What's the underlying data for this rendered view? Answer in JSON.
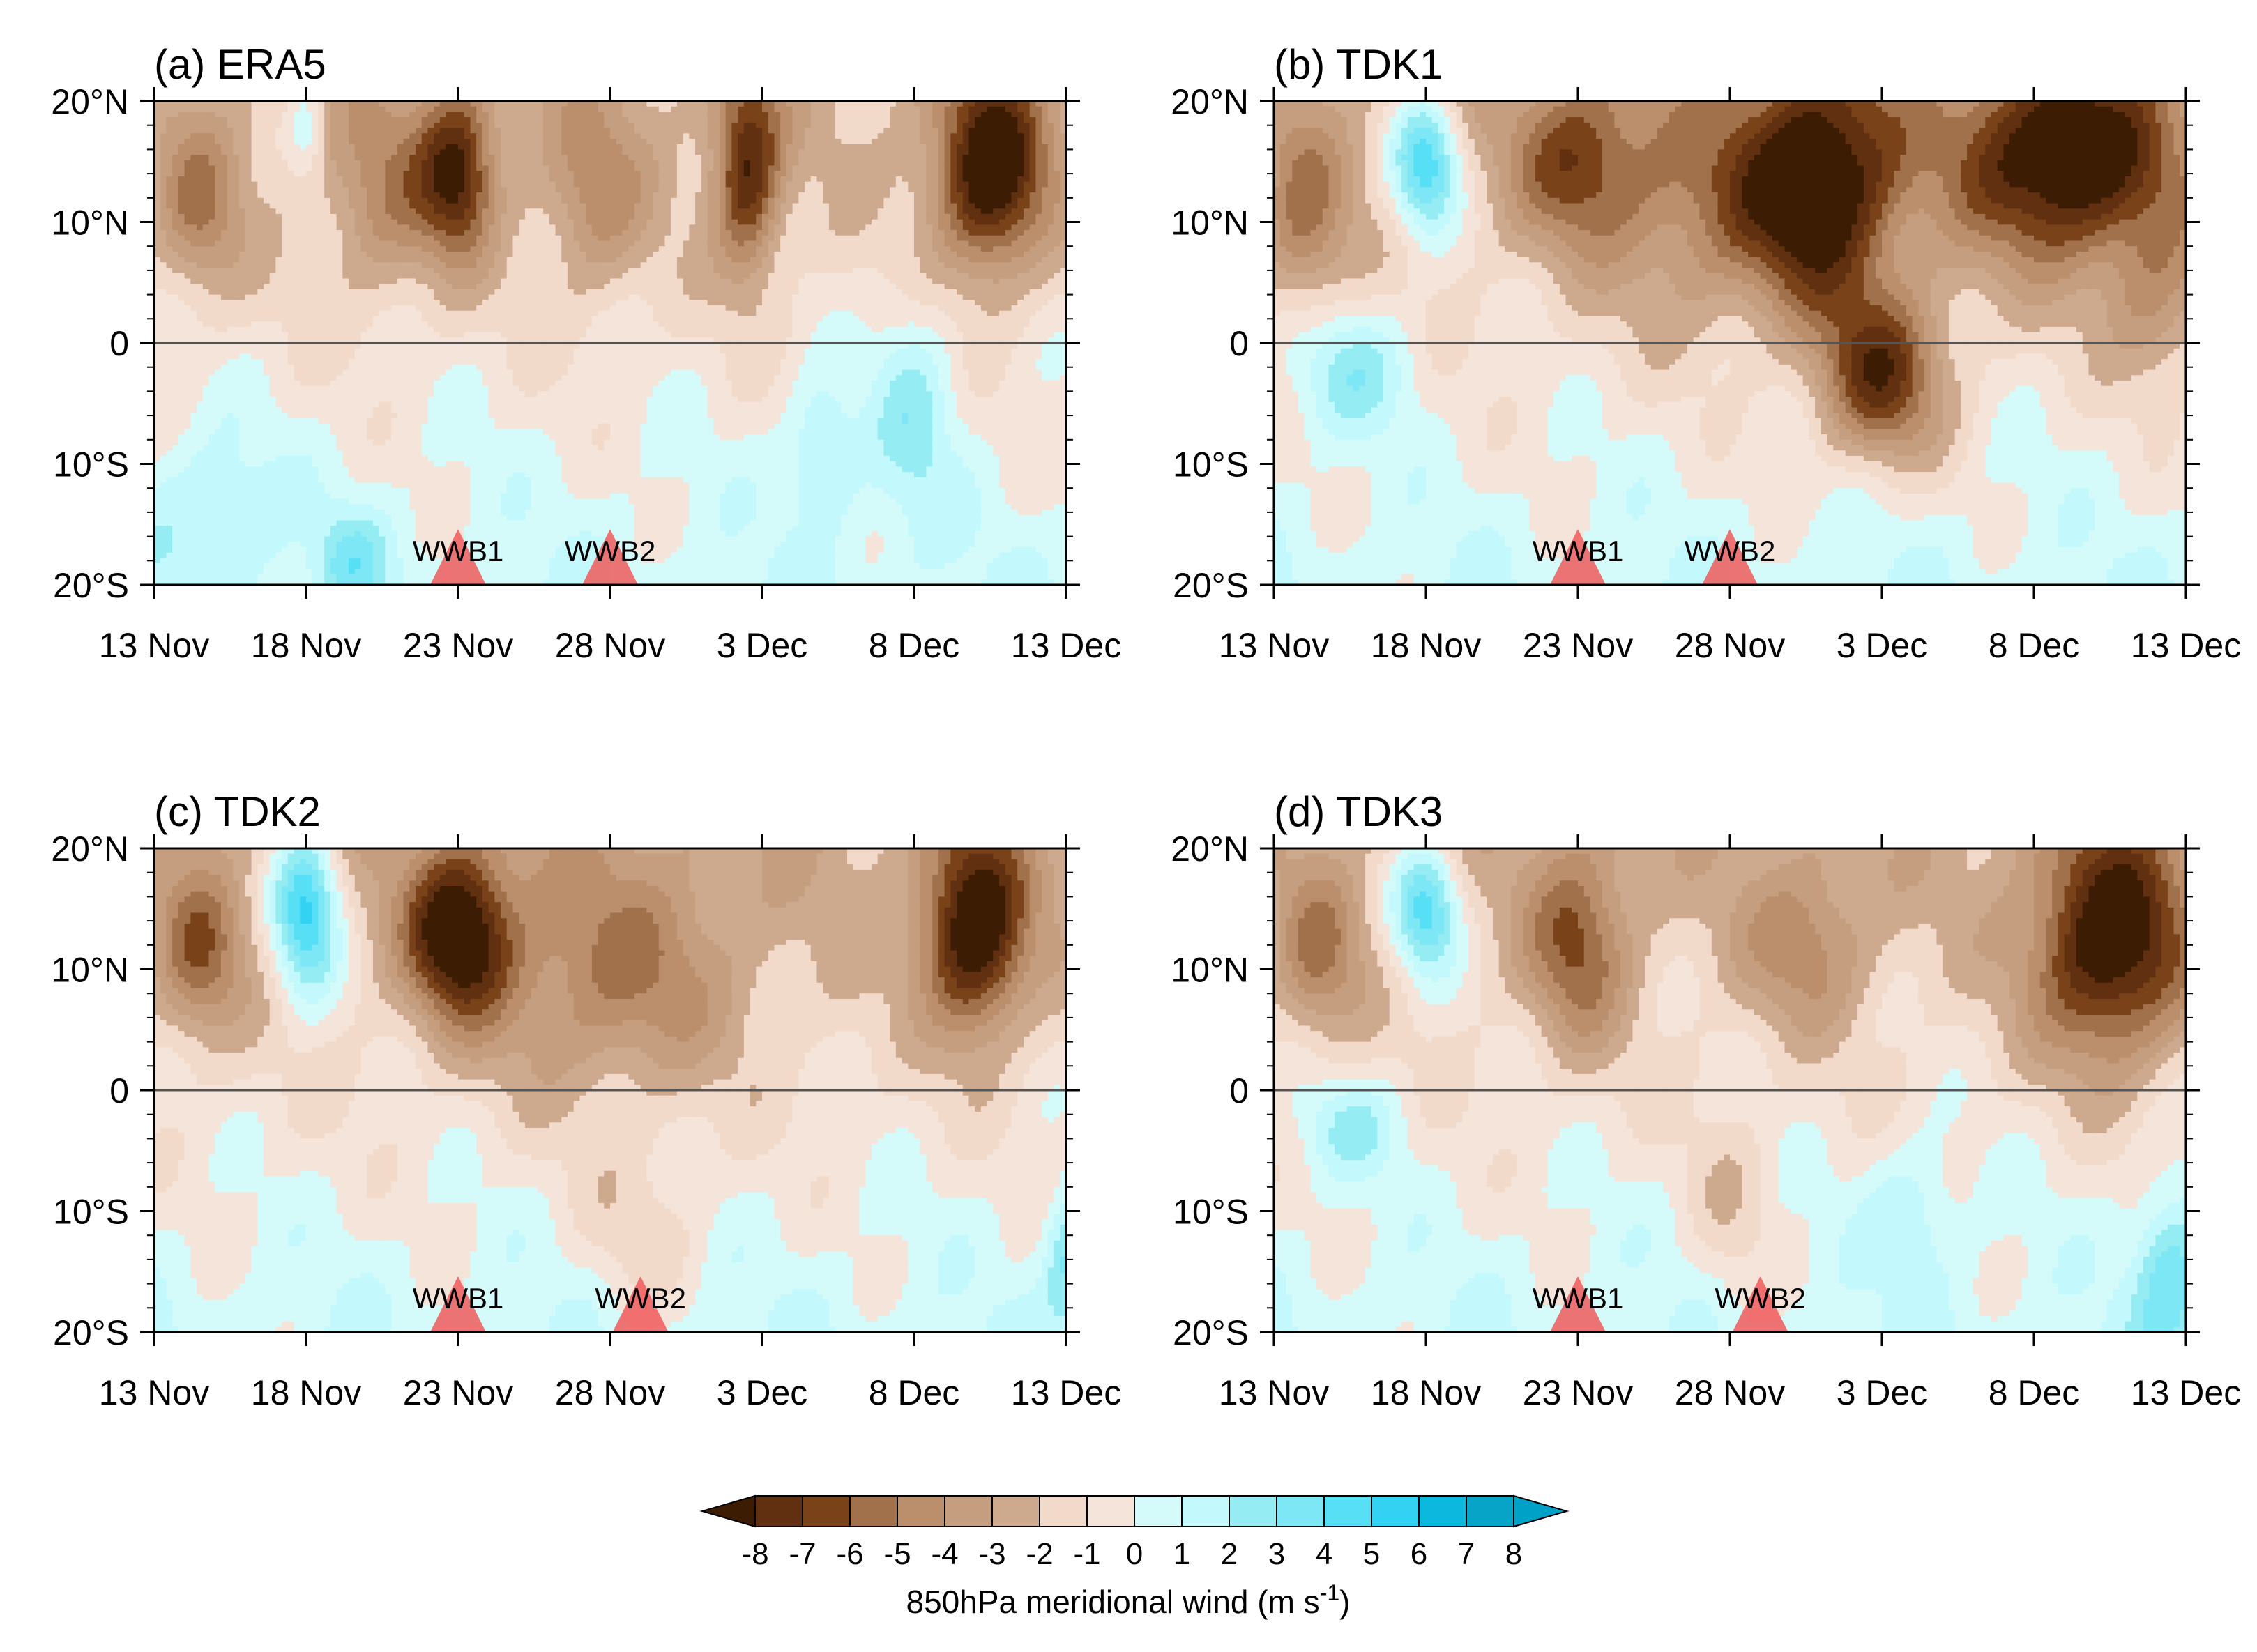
{
  "chart_data": [
    {
      "type": "heatmap",
      "panel_title": "(a) ERA5",
      "x_tick_labels": [
        "13 Nov",
        "18 Nov",
        "23 Nov",
        "28 Nov",
        "3 Dec",
        "8 Dec",
        "13 Dec"
      ],
      "y_tick_labels": [
        "20°N",
        "10°N",
        "0",
        "10°S",
        "20°S"
      ],
      "xlim_days": [
        0,
        30
      ],
      "ylim_lat": [
        -20,
        20
      ],
      "events": [
        {
          "label": "WWB1",
          "day": 10
        },
        {
          "label": "WWB2",
          "day": 15
        }
      ],
      "blobs": [
        {
          "d": 1.5,
          "lat": 11,
          "sd": 1.0,
          "sl": 5,
          "a": -3.5
        },
        {
          "d": 10,
          "lat": 14,
          "sd": 0.9,
          "sl": 5,
          "a": -6.5
        },
        {
          "d": 7.5,
          "lat": 12,
          "sd": 1.3,
          "sl": 6,
          "a": -3.0
        },
        {
          "d": 14.5,
          "lat": 12,
          "sd": 1.2,
          "sl": 6,
          "a": -3.0
        },
        {
          "d": 19.5,
          "lat": 14,
          "sd": 0.8,
          "sl": 6,
          "a": -6.5
        },
        {
          "d": 27.5,
          "lat": 14,
          "sd": 1.3,
          "sl": 6,
          "a": -8.0
        },
        {
          "d": 5,
          "lat": 18,
          "sd": 0.4,
          "sl": 3,
          "a": 2.5
        },
        {
          "d": 2,
          "lat": -14,
          "sd": 1.5,
          "sl": 5,
          "a": 2.0
        },
        {
          "d": 22,
          "lat": -9,
          "sd": 0.8,
          "sl": 4,
          "a": 2.8
        },
        {
          "d": 25,
          "lat": -5,
          "sd": 1.0,
          "sl": 7,
          "a": 2.5
        },
        {
          "d": 6.5,
          "lat": -18,
          "sd": 0.8,
          "sl": 3,
          "a": 2.5
        }
      ],
      "north_bias": -2.2,
      "south_bias": 0.8
    },
    {
      "type": "heatmap",
      "panel_title": "(b) TDK1",
      "x_tick_labels": [
        "13 Nov",
        "18 Nov",
        "23 Nov",
        "28 Nov",
        "3 Dec",
        "8 Dec",
        "13 Dec"
      ],
      "y_tick_labels": [
        "20°N",
        "10°N",
        "0",
        "10°S",
        "20°S"
      ],
      "xlim_days": [
        0,
        30
      ],
      "ylim_lat": [
        -20,
        20
      ],
      "events": [
        {
          "label": "WWB1",
          "day": 10
        },
        {
          "label": "WWB2",
          "day": 15
        }
      ],
      "blobs": [
        {
          "d": 1,
          "lat": 10,
          "sd": 1.0,
          "sl": 6,
          "a": -3.5
        },
        {
          "d": 5,
          "lat": 15,
          "sd": 0.8,
          "sl": 4,
          "a": 6.5
        },
        {
          "d": 2.5,
          "lat": -2,
          "sd": 1.5,
          "sl": 4,
          "a": 3.0
        },
        {
          "d": 10,
          "lat": 15,
          "sd": 1.5,
          "sl": 5,
          "a": -4.5
        },
        {
          "d": 18,
          "lat": 13,
          "sd": 1.8,
          "sl": 7,
          "a": -8.0
        },
        {
          "d": 26,
          "lat": 15,
          "sd": 2.5,
          "sl": 6,
          "a": -8.0
        },
        {
          "d": 20,
          "lat": -3,
          "sd": 1.5,
          "sl": 5,
          "a": -6.5
        },
        {
          "d": 14,
          "lat": 11,
          "sd": 2.2,
          "sl": 7,
          "a": -3.0
        },
        {
          "d": 29,
          "lat": 3,
          "sd": 1.2,
          "sl": 5,
          "a": -3.0
        }
      ],
      "north_bias": -2.5,
      "south_bias": 0.8
    },
    {
      "type": "heatmap",
      "panel_title": "(c) TDK2",
      "x_tick_labels": [
        "13 Nov",
        "18 Nov",
        "23 Nov",
        "28 Nov",
        "3 Dec",
        "8 Dec",
        "13 Dec"
      ],
      "y_tick_labels": [
        "20°N",
        "10°N",
        "0",
        "10°S",
        "20°S"
      ],
      "xlim_days": [
        0,
        30
      ],
      "ylim_lat": [
        -20,
        20
      ],
      "events": [
        {
          "label": "WWB1",
          "day": 10
        },
        {
          "label": "WWB2",
          "day": 16
        }
      ],
      "blobs": [
        {
          "d": 1.5,
          "lat": 11,
          "sd": 1.0,
          "sl": 5,
          "a": -4.0
        },
        {
          "d": 5,
          "lat": 15,
          "sd": 0.8,
          "sl": 5,
          "a": 7.0
        },
        {
          "d": 10,
          "lat": 13,
          "sd": 1.2,
          "sl": 5,
          "a": -7.5
        },
        {
          "d": 15,
          "lat": 9,
          "sd": 3.0,
          "sl": 7,
          "a": -3.5
        },
        {
          "d": 27,
          "lat": 13,
          "sd": 1.2,
          "sl": 6,
          "a": -8.0
        },
        {
          "d": 16,
          "lat": -12,
          "sd": 1.5,
          "sl": 5,
          "a": -1.5
        },
        {
          "d": 30,
          "lat": -14,
          "sd": 0.5,
          "sl": 4,
          "a": 3.0
        }
      ],
      "north_bias": -2.5,
      "south_bias": 0.8
    },
    {
      "type": "heatmap",
      "panel_title": "(d) TDK3",
      "x_tick_labels": [
        "13 Nov",
        "18 Nov",
        "23 Nov",
        "28 Nov",
        "3 Dec",
        "8 Dec",
        "13 Dec"
      ],
      "y_tick_labels": [
        "20°N",
        "10°N",
        "0",
        "10°S",
        "20°S"
      ],
      "xlim_days": [
        0,
        30
      ],
      "ylim_lat": [
        -20,
        20
      ],
      "events": [
        {
          "label": "WWB1",
          "day": 10
        },
        {
          "label": "WWB2",
          "day": 16
        }
      ],
      "blobs": [
        {
          "d": 1.5,
          "lat": 11,
          "sd": 1.0,
          "sl": 5,
          "a": -3.5
        },
        {
          "d": 5,
          "lat": 15,
          "sd": 0.8,
          "sl": 4,
          "a": 6.0
        },
        {
          "d": 10,
          "lat": 12,
          "sd": 1.2,
          "sl": 6,
          "a": -4.5
        },
        {
          "d": 17.5,
          "lat": 12,
          "sd": 1.5,
          "sl": 5,
          "a": -3.0
        },
        {
          "d": 27.5,
          "lat": 12,
          "sd": 1.8,
          "sl": 7,
          "a": -8.0
        },
        {
          "d": 2.5,
          "lat": -3,
          "sd": 1.2,
          "sl": 3,
          "a": 2.5
        },
        {
          "d": 29.5,
          "lat": -15,
          "sd": 0.8,
          "sl": 5,
          "a": 3.5
        },
        {
          "d": 21,
          "lat": -10,
          "sd": 1.0,
          "sl": 4,
          "a": 2.0
        },
        {
          "d": 15,
          "lat": -10,
          "sd": 1.0,
          "sl": 6,
          "a": -1.5
        }
      ],
      "north_bias": -2.3,
      "south_bias": 0.8
    }
  ],
  "colorbar": {
    "labels": [
      "-8",
      "-7",
      "-6",
      "-5",
      "-4",
      "-3",
      "-2",
      "-1",
      "0",
      "1",
      "2",
      "3",
      "4",
      "5",
      "6",
      "7",
      "8"
    ],
    "levels": [
      -8,
      -7,
      -6,
      -5,
      -4,
      -3,
      -2,
      -1,
      0,
      1,
      2,
      3,
      4,
      5,
      6,
      7,
      8
    ],
    "colors": [
      "#3d1c04",
      "#613010",
      "#7a4219",
      "#a1714c",
      "#bb8e6c",
      "#c49e7f",
      "#cda98e",
      "#f2dacb",
      "#f5e4d9",
      "#d4fafa",
      "#c3f8fc",
      "#95ecf2",
      "#7de7f5",
      "#57e0f5",
      "#33d2f2",
      "#0cb8dd",
      "#07a4c8",
      "#00a1c6"
    ],
    "title_main": "850hPa meridional wind (m s",
    "title_sup": "-1",
    "title_end": ")"
  },
  "event_color": "#f05a5a"
}
